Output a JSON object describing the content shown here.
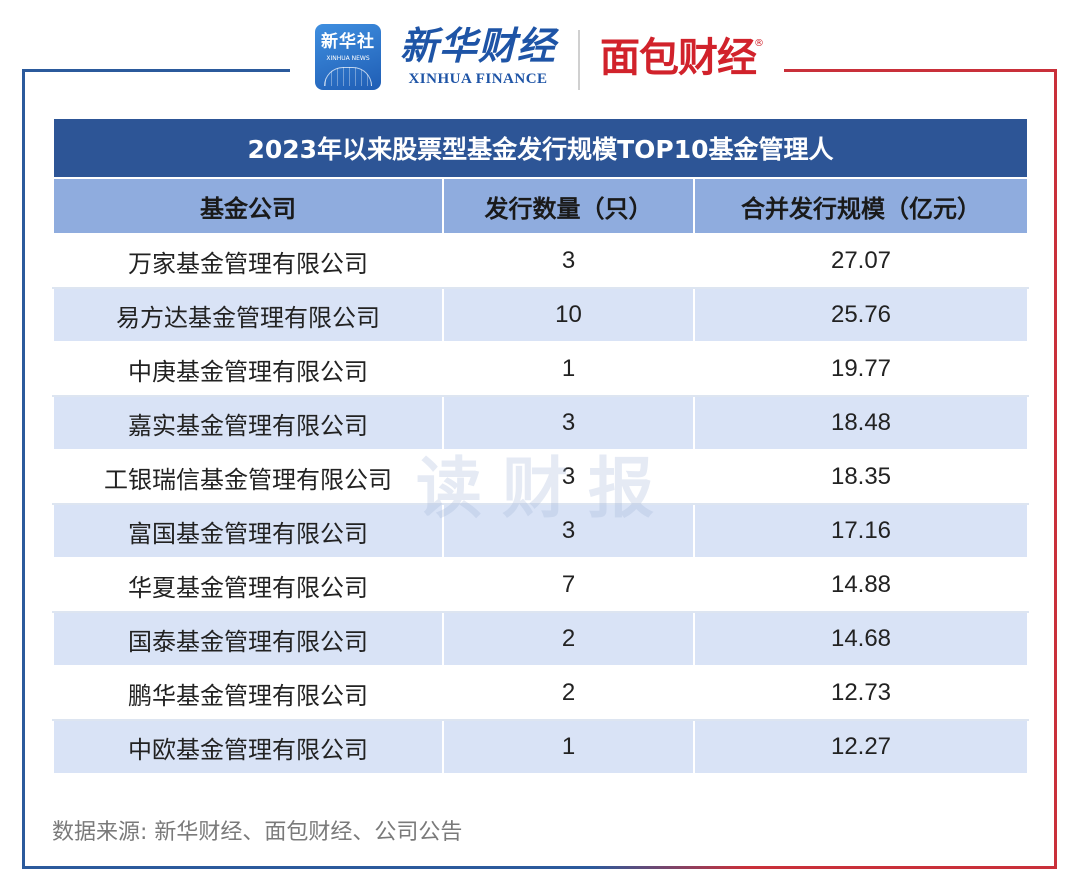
{
  "header": {
    "xinhua_logo_cn": "新华社",
    "xinhua_logo_en": "XINHUA NEWS",
    "xinhua_finance_cn": "新华财经",
    "xinhua_finance_en": "XINHUA FINANCE",
    "mianbao_brand": "面包财经",
    "registered_mark": "®"
  },
  "table": {
    "title": "2023年以来股票型基金发行规模TOP10基金管理人",
    "columns": [
      "基金公司",
      "发行数量（只）",
      "合并发行规模（亿元）"
    ],
    "rows": [
      [
        "万家基金管理有限公司",
        "3",
        "27.07"
      ],
      [
        "易方达基金管理有限公司",
        "10",
        "25.76"
      ],
      [
        "中庚基金管理有限公司",
        "1",
        "19.77"
      ],
      [
        "嘉实基金管理有限公司",
        "3",
        "18.48"
      ],
      [
        "工银瑞信基金管理有限公司",
        "3",
        "18.35"
      ],
      [
        "富国基金管理有限公司",
        "3",
        "17.16"
      ],
      [
        "华夏基金管理有限公司",
        "7",
        "14.88"
      ],
      [
        "国泰基金管理有限公司",
        "2",
        "14.68"
      ],
      [
        "鹏华基金管理有限公司",
        "2",
        "12.73"
      ],
      [
        "中欧基金管理有限公司",
        "1",
        "12.27"
      ]
    ]
  },
  "watermark": "读财报",
  "source_note": "数据来源: 新华财经、面包财经、公司公告",
  "colors": {
    "title_bg": "#2d5596",
    "header_bg": "#8facde",
    "stripe_bg": "#d9e3f6",
    "frame_blue": "#2b5a9c",
    "frame_red": "#c9303a",
    "brand_red": "#d1222b"
  }
}
